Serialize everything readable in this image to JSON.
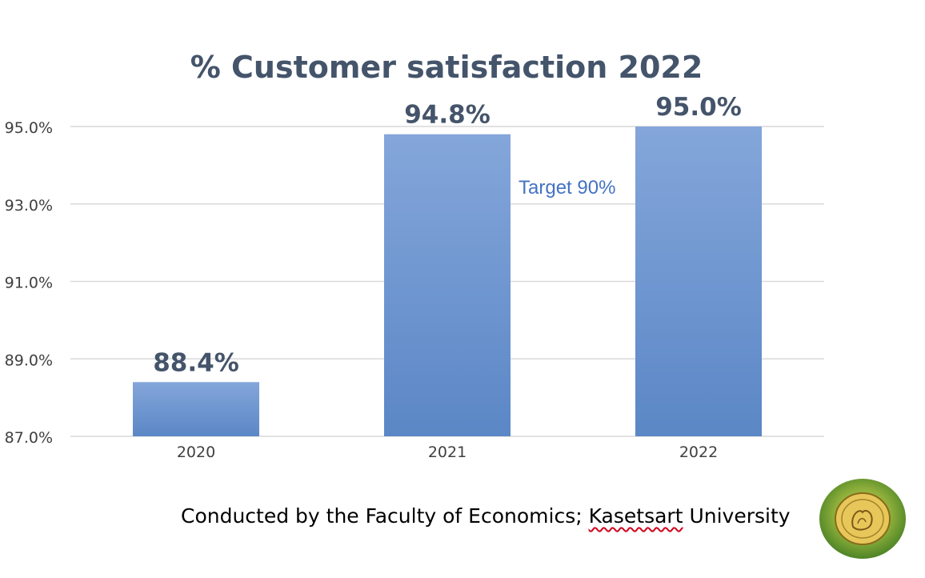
{
  "chart_data": {
    "type": "bar",
    "title": "% Customer satisfaction 2022",
    "categories": [
      "2020",
      "2021",
      "2022"
    ],
    "values": [
      88.4,
      94.8,
      95.0
    ],
    "data_labels": [
      "88.4%",
      "94.8%",
      "95.0%"
    ],
    "ylim": [
      87.0,
      95.0
    ],
    "yticks": [
      "87.0%",
      "89.0%",
      "91.0%",
      "93.0%",
      "95.0%"
    ],
    "ytick_values": [
      87,
      89,
      91,
      93,
      95
    ],
    "grid": true,
    "annotation": "Target 90%",
    "xlabel": "",
    "ylabel": ""
  },
  "colors": {
    "bar_top": "#84a6da",
    "bar_bottom": "#5b87c6",
    "title": "#44546a",
    "annotation": "#4472c4",
    "grid": "#d9d9d9",
    "tick_text": "#404040"
  },
  "footer": {
    "prefix": "Conducted by the Faculty of Economics; ",
    "underlined": "Kasetsart",
    "suffix": " University"
  },
  "logo": {
    "icon": "kasetsart-university-seal-icon"
  }
}
